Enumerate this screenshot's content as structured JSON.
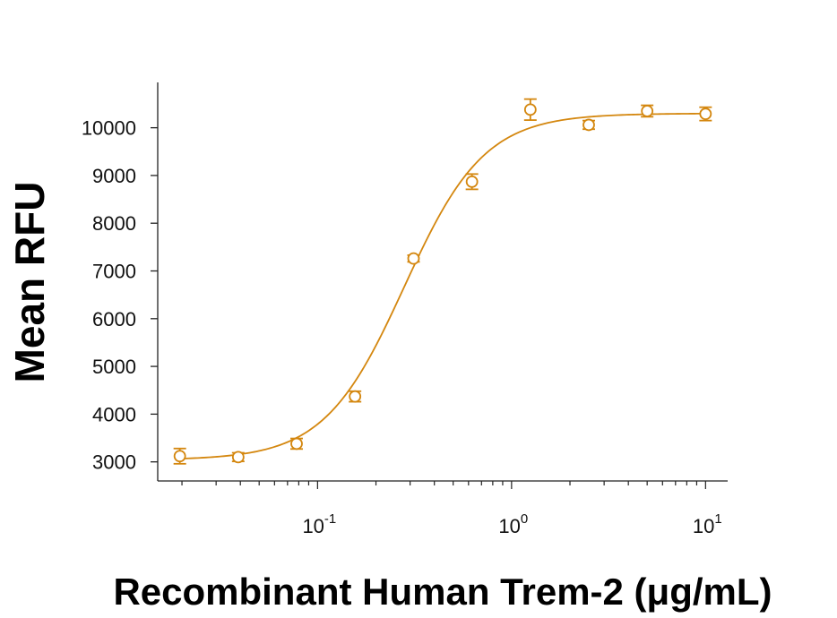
{
  "chart_data": {
    "type": "scatter",
    "xlabel": "Recombinant Human Trem-2 (μg/mL)",
    "ylabel": "Mean RFU",
    "x_scale": "log",
    "xlim": [
      0.015,
      13
    ],
    "ylim": [
      2600,
      10950
    ],
    "y_ticks": [
      3000,
      4000,
      5000,
      6000,
      7000,
      8000,
      9000,
      10000
    ],
    "y_tick_labels": [
      "3000",
      "4000",
      "5000",
      "6000",
      "7000",
      "8000",
      "9000",
      "10000"
    ],
    "x_ticks": [
      {
        "value": 0.1,
        "base": "10",
        "exp": "-1"
      },
      {
        "value": 1,
        "base": "10",
        "exp": "0"
      },
      {
        "value": 10,
        "base": "10",
        "exp": "1"
      }
    ],
    "color": "#D4870F",
    "grid": false,
    "series": [
      {
        "points": [
          {
            "x": 0.0195,
            "y": 3120,
            "err": 160
          },
          {
            "x": 0.039,
            "y": 3100,
            "err": 90
          },
          {
            "x": 0.078,
            "y": 3380,
            "err": 110
          },
          {
            "x": 0.156,
            "y": 4370,
            "err": 110
          },
          {
            "x": 0.3125,
            "y": 7260,
            "err": 70
          },
          {
            "x": 0.625,
            "y": 8870,
            "err": 160
          },
          {
            "x": 1.25,
            "y": 10380,
            "err": 220
          },
          {
            "x": 2.5,
            "y": 10060,
            "err": 90
          },
          {
            "x": 5,
            "y": 10350,
            "err": 120
          },
          {
            "x": 10,
            "y": 10290,
            "err": 140
          }
        ],
        "fit": {
          "model": "4PL",
          "bottom": 3040,
          "top": 10300,
          "ec50": 0.28,
          "hill": 2.1
        }
      }
    ]
  }
}
